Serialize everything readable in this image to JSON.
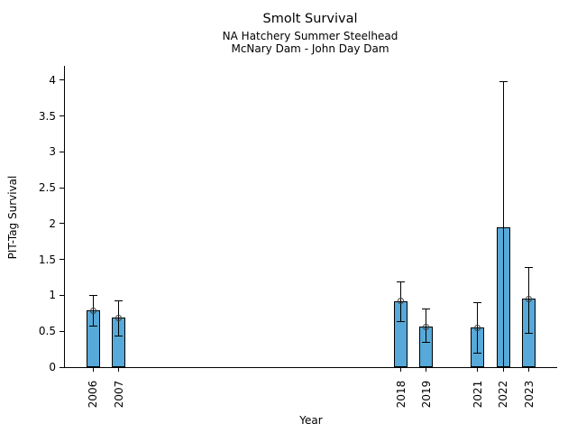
{
  "chart_data": {
    "type": "bar",
    "title": "Smolt Survival",
    "subtitle_lines": [
      "NA Hatchery Summer Steelhead",
      "McNary Dam - John Day Dam"
    ],
    "xlabel": "Year",
    "ylabel": "PIT-Tag Survival",
    "categories": [
      "2006",
      "2007",
      "2018",
      "2019",
      "2021",
      "2022",
      "2023"
    ],
    "series": [
      {
        "name": "PIT-Tag Survival",
        "values": [
          0.79,
          0.69,
          0.92,
          0.56,
          0.55,
          1.95,
          0.95
        ],
        "error_low": [
          0.57,
          0.44,
          0.63,
          0.34,
          0.19,
          0.0,
          0.47
        ],
        "error_high": [
          1.0,
          0.93,
          1.19,
          0.81,
          0.9,
          3.98,
          1.39
        ],
        "point_markers": [
          0.79,
          0.69,
          0.92,
          0.56,
          0.55,
          null,
          0.95
        ]
      }
    ],
    "ylim": [
      0,
      4.2
    ],
    "xlim": [
      2004.9,
      2024.1
    ],
    "yticks": [
      "0",
      "0.5",
      "1",
      "1.5",
      "2",
      "2.5",
      "3",
      "3.5",
      "4"
    ],
    "grid": false,
    "legend": null,
    "bar_color": "#56A9D8",
    "bar_edge_color": "#000000",
    "error_color": "#000000",
    "marker_edge_color": "#3d3d3d",
    "background": "#FFFFFF"
  }
}
